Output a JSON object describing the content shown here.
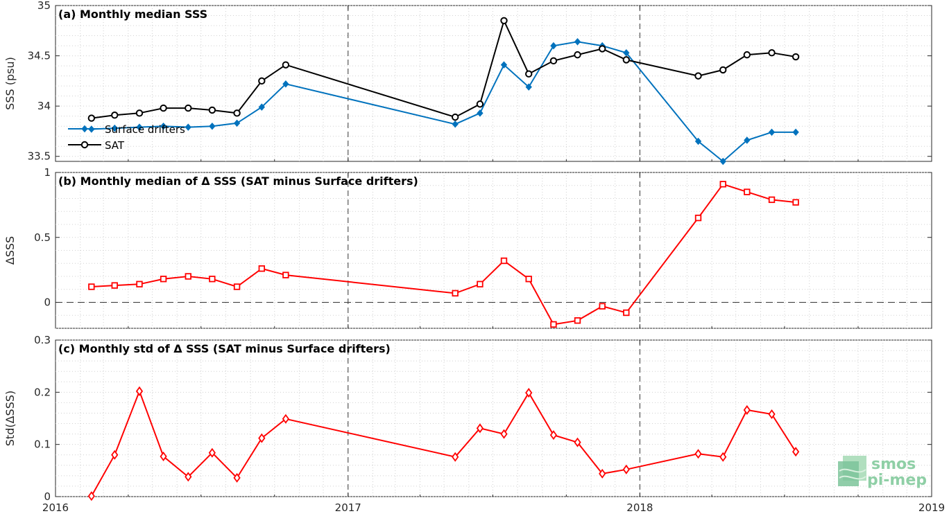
{
  "chart_data": [
    {
      "type": "line",
      "title": "(a) Monthly median SSS",
      "ylabel": "SSS (psu)",
      "xlim": [
        "2016-01-01",
        "2019-01-01"
      ],
      "ylim": [
        33.45,
        35
      ],
      "yticks": [
        "33.5",
        "34",
        "34.5",
        "35"
      ],
      "xticks": [
        "2016",
        "2017",
        "2018",
        "2019"
      ],
      "grid": true,
      "legend": "top-left",
      "series": [
        {
          "name": "Surface drifters",
          "color": "#0072BD",
          "marker": "diamond-filled",
          "x": [
            "2016-02-15",
            "2016-03-15",
            "2016-04-15",
            "2016-05-15",
            "2016-06-15",
            "2016-07-15",
            "2016-08-15",
            "2016-09-15",
            "2016-10-15",
            "2017-05-15",
            "2017-06-15",
            "2017-07-15",
            "2017-08-15",
            "2017-09-15",
            "2017-10-15",
            "2017-11-15",
            "2017-12-15",
            "2018-03-15",
            "2018-04-15",
            "2018-05-15",
            "2018-06-15",
            "2018-07-15"
          ],
          "y": [
            33.77,
            33.78,
            33.79,
            33.8,
            33.79,
            33.8,
            33.83,
            33.99,
            34.22,
            33.82,
            33.93,
            34.41,
            34.19,
            34.6,
            34.64,
            34.6,
            34.53,
            33.65,
            33.45,
            33.66,
            33.74,
            33.74
          ]
        },
        {
          "name": "SAT",
          "color": "#000000",
          "marker": "circle-open",
          "x": [
            "2016-02-15",
            "2016-03-15",
            "2016-04-15",
            "2016-05-15",
            "2016-06-15",
            "2016-07-15",
            "2016-08-15",
            "2016-09-15",
            "2016-10-15",
            "2017-05-15",
            "2017-06-15",
            "2017-07-15",
            "2017-08-15",
            "2017-09-15",
            "2017-10-15",
            "2017-11-15",
            "2017-12-15",
            "2018-03-15",
            "2018-04-15",
            "2018-05-15",
            "2018-06-15",
            "2018-07-15"
          ],
          "y": [
            33.88,
            33.91,
            33.93,
            33.98,
            33.98,
            33.96,
            33.93,
            34.25,
            34.41,
            33.89,
            34.02,
            34.85,
            34.32,
            34.45,
            34.51,
            34.57,
            34.46,
            34.3,
            34.36,
            34.51,
            34.53,
            34.49
          ]
        }
      ]
    },
    {
      "type": "line",
      "title": "(b) Monthly median of Δ SSS (SAT minus Surface drifters)",
      "ylabel": "ΔSSS",
      "xlim": [
        "2016-01-01",
        "2019-01-01"
      ],
      "ylim": [
        -0.2,
        1
      ],
      "yticks": [
        "0",
        "0.5",
        "1"
      ],
      "xticks": [
        "2016",
        "2017",
        "2018",
        "2019"
      ],
      "grid": true,
      "zero_line": "dashed",
      "series": [
        {
          "color": "#FF0000",
          "marker": "square-open",
          "x": [
            "2016-02-15",
            "2016-03-15",
            "2016-04-15",
            "2016-05-15",
            "2016-06-15",
            "2016-07-15",
            "2016-08-15",
            "2016-09-15",
            "2016-10-15",
            "2017-05-15",
            "2017-06-15",
            "2017-07-15",
            "2017-08-15",
            "2017-09-15",
            "2017-10-15",
            "2017-11-15",
            "2017-12-15",
            "2018-03-15",
            "2018-04-15",
            "2018-05-15",
            "2018-06-15",
            "2018-07-15"
          ],
          "y": [
            0.12,
            0.13,
            0.14,
            0.18,
            0.2,
            0.18,
            0.12,
            0.26,
            0.21,
            0.07,
            0.14,
            0.32,
            0.18,
            -0.17,
            -0.14,
            -0.03,
            -0.08,
            0.65,
            0.91,
            0.85,
            0.79,
            0.77
          ]
        }
      ]
    },
    {
      "type": "line",
      "title": "(c) Monthly std of Δ SSS (SAT minus Surface drifters)",
      "ylabel": "Std(ΔSSS)",
      "xlim": [
        "2016-01-01",
        "2019-01-01"
      ],
      "ylim": [
        0,
        0.3
      ],
      "yticks": [
        "0",
        "0.1",
        "0.2",
        "0.3"
      ],
      "xticks": [
        "2016",
        "2017",
        "2018",
        "2019"
      ],
      "grid": true,
      "series": [
        {
          "color": "#FF0000",
          "marker": "diamond-open",
          "x": [
            "2016-02-15",
            "2016-03-15",
            "2016-04-15",
            "2016-05-15",
            "2016-06-15",
            "2016-07-15",
            "2016-08-15",
            "2016-09-15",
            "2016-10-15",
            "2017-05-15",
            "2017-06-15",
            "2017-07-15",
            "2017-08-15",
            "2017-09-15",
            "2017-10-15",
            "2017-11-15",
            "2017-12-15",
            "2018-03-15",
            "2018-04-15",
            "2018-05-15",
            "2018-06-15",
            "2018-07-15"
          ],
          "y": [
            0.001,
            0.08,
            0.202,
            0.077,
            0.038,
            0.084,
            0.036,
            0.112,
            0.149,
            0.076,
            0.131,
            0.12,
            0.199,
            0.118,
            0.104,
            0.044,
            0.052,
            0.082,
            0.076,
            0.166,
            0.158,
            0.086
          ]
        }
      ]
    }
  ],
  "logo": {
    "line1": "smos",
    "line2": "pi-mep",
    "color": "#7cc49a"
  }
}
